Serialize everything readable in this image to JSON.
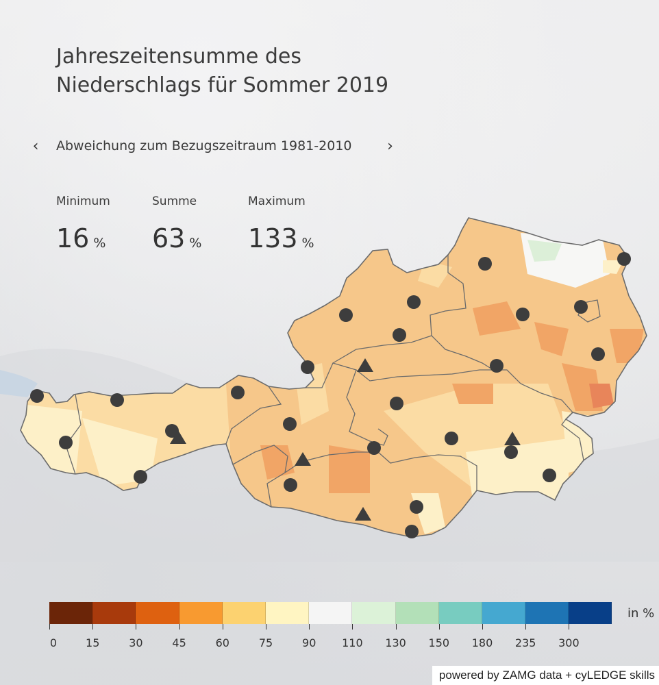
{
  "title": {
    "line1": "Jahreszeitensumme des",
    "line2": "Niederschlags für Sommer 2019"
  },
  "navigation": {
    "prev_icon": "chevron-left-icon",
    "next_icon": "chevron-right-icon",
    "prev_glyph": "‹",
    "next_glyph": "›",
    "label": "Abweichung zum Bezugszeitraum 1981-2010"
  },
  "stats": {
    "minimum": {
      "label": "Minimum",
      "value": "16",
      "unit": "%"
    },
    "summe": {
      "label": "Summe",
      "value": "63",
      "unit": "%"
    },
    "maximum": {
      "label": "Maximum",
      "value": "133",
      "unit": "%"
    }
  },
  "map": {
    "region": "Österreich",
    "fill_colors": {
      "base": "#f6c78a",
      "dry": "#f1a566",
      "very_dry": "#e8855a",
      "moderate": "#fbdca4",
      "near_normal": "#fdf0c8",
      "normal": "#f7f7f5",
      "wet": "#dcefd8"
    },
    "border_color": "#6b6b6b",
    "marker_color": "#3d3d3d",
    "station_markers": {
      "circles": 26,
      "triangles": 5
    }
  },
  "legend": {
    "unit": "in %",
    "colors": [
      "#6b2508",
      "#a83a0c",
      "#de6110",
      "#f89a30",
      "#fcd270",
      "#fff5c2",
      "#f5f5f5",
      "#dcf2d8",
      "#b3e0b8",
      "#78ccc0",
      "#45a8d0",
      "#1e74b4",
      "#083f88"
    ],
    "labels": [
      "0",
      "15",
      "30",
      "45",
      "60",
      "75",
      "90",
      "110",
      "130",
      "150",
      "180",
      "235",
      "300"
    ]
  },
  "credit": "powered by ZAMG data + cyLEDGE skills"
}
